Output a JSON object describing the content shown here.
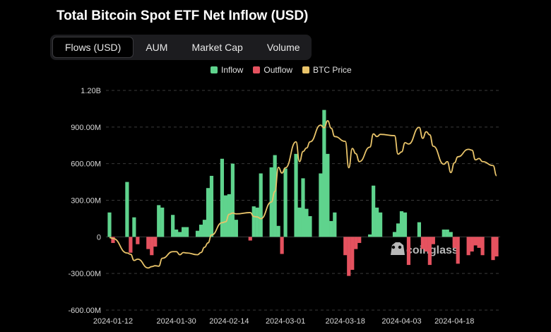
{
  "title": "Total Bitcoin Spot ETF Net Inflow (USD)",
  "tabs": [
    {
      "label": "Flows (USD)",
      "active": true
    },
    {
      "label": "AUM",
      "active": false
    },
    {
      "label": "Market Cap",
      "active": false
    },
    {
      "label": "Volume",
      "active": false
    }
  ],
  "watermark": "coinglass",
  "colors": {
    "inflow": "#5fd38d",
    "outflow": "#e5525f",
    "price": "#e9c46a",
    "grid": "#3a3a3a",
    "background": "#000000"
  },
  "chart_data": {
    "type": "bar",
    "title": "Total Bitcoin Spot ETF Net Inflow (USD)",
    "legend": [
      {
        "name": "Inflow",
        "color": "#5fd38d"
      },
      {
        "name": "Outflow",
        "color": "#e5525f"
      },
      {
        "name": "BTC Price",
        "color": "#e9c46a"
      }
    ],
    "legend_position": "top-center",
    "grid": true,
    "ylim": [
      -600000000,
      1200000000
    ],
    "yticks": [
      -600000000,
      -300000000,
      0,
      300000000,
      600000000,
      900000000,
      1200000000
    ],
    "ytick_labels": [
      "-600.00M",
      "-300.00M",
      "0",
      "300.00M",
      "600.00M",
      "900.00M",
      "1.20B"
    ],
    "x_start": "2024-01-11",
    "x_end": "2024-04-30",
    "xtick_labels": [
      "2024-01-12",
      "2024-01-30",
      "2024-02-14",
      "2024-03-01",
      "2024-03-18",
      "2024-04-03",
      "2024-04-18"
    ],
    "dates": [
      "2024-01-11",
      "2024-01-12",
      "2024-01-16",
      "2024-01-17",
      "2024-01-18",
      "2024-01-19",
      "2024-01-22",
      "2024-01-23",
      "2024-01-24",
      "2024-01-25",
      "2024-01-26",
      "2024-01-29",
      "2024-01-30",
      "2024-01-31",
      "2024-02-01",
      "2024-02-02",
      "2024-02-05",
      "2024-02-06",
      "2024-02-07",
      "2024-02-08",
      "2024-02-09",
      "2024-02-12",
      "2024-02-13",
      "2024-02-14",
      "2024-02-15",
      "2024-02-16",
      "2024-02-20",
      "2024-02-21",
      "2024-02-22",
      "2024-02-23",
      "2024-02-26",
      "2024-02-27",
      "2024-02-28",
      "2024-02-29",
      "2024-03-01",
      "2024-03-04",
      "2024-03-05",
      "2024-03-06",
      "2024-03-07",
      "2024-03-08",
      "2024-03-11",
      "2024-03-12",
      "2024-03-13",
      "2024-03-14",
      "2024-03-15",
      "2024-03-18",
      "2024-03-19",
      "2024-03-20",
      "2024-03-21",
      "2024-03-22",
      "2024-03-25",
      "2024-03-26",
      "2024-03-27",
      "2024-03-28",
      "2024-04-01",
      "2024-04-02",
      "2024-04-03",
      "2024-04-04",
      "2024-04-05",
      "2024-04-08",
      "2024-04-09",
      "2024-04-10",
      "2024-04-11",
      "2024-04-12",
      "2024-04-15",
      "2024-04-16",
      "2024-04-17",
      "2024-04-18",
      "2024-04-19",
      "2024-04-22",
      "2024-04-23",
      "2024-04-24",
      "2024-04-25",
      "2024-04-26",
      "2024-04-29",
      "2024-04-30"
    ],
    "net_flow": [
      200000000,
      -50000000,
      450000000,
      -130000000,
      160000000,
      -60000000,
      -100000000,
      -150000000,
      -80000000,
      260000000,
      240000000,
      180000000,
      60000000,
      40000000,
      80000000,
      80000000,
      50000000,
      100000000,
      140000000,
      400000000,
      500000000,
      640000000,
      340000000,
      350000000,
      600000000,
      140000000,
      -30000000,
      250000000,
      240000000,
      520000000,
      570000000,
      670000000,
      90000000,
      -140000000,
      560000000,
      680000000,
      240000000,
      480000000,
      230000000,
      170000000,
      520000000,
      1040000000,
      680000000,
      130000000,
      200000000,
      -150000000,
      -320000000,
      -270000000,
      -100000000,
      -50000000,
      20000000,
      420000000,
      240000000,
      200000000,
      40000000,
      110000000,
      210000000,
      200000000,
      -230000000,
      120000000,
      -100000000,
      -120000000,
      -230000000,
      -60000000,
      60000000,
      60000000,
      40000000,
      -90000000,
      -220000000,
      -150000000,
      -120000000,
      -70000000,
      -90000000,
      -150000000,
      -190000000,
      -160000000
    ],
    "btc_price": [
      46500,
      46300,
      43000,
      42700,
      41300,
      41600,
      39600,
      39900,
      40100,
      40000,
      41800,
      43300,
      43300,
      42600,
      43100,
      43000,
      42600,
      43100,
      44300,
      45300,
      47100,
      49900,
      50100,
      51800,
      52100,
      51900,
      52200,
      51300,
      51200,
      50800,
      54600,
      57000,
      62500,
      61200,
      62400,
      68300,
      63800,
      66100,
      66900,
      68300,
      72100,
      71500,
      73100,
      71400,
      69500,
      68400,
      62400,
      66800,
      65600,
      63800,
      67100,
      70100,
      69500,
      70000,
      69700,
      65500,
      66000,
      68100,
      67800,
      71600,
      69100,
      70600,
      69900,
      67300,
      63200,
      63800,
      61300,
      63500,
      64900,
      66600,
      66400,
      64200,
      64500,
      63800,
      62900,
      60600
    ],
    "price_ylim": [
      30000,
      80000
    ]
  }
}
